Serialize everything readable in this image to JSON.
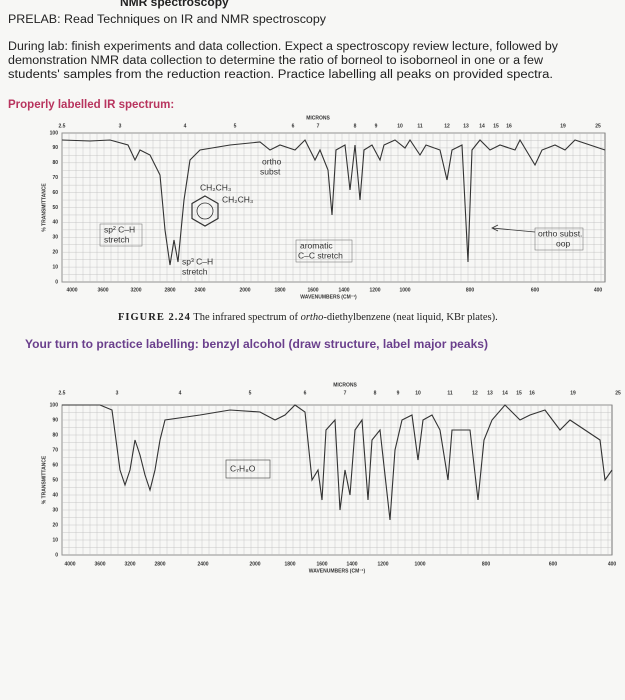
{
  "header": {
    "title": "NMR spectroscopy"
  },
  "prelab": "PRELAB: Read Techniques on IR and NMR spectroscopy",
  "paragraph": [
    "During lab: finish experiments and data collection. Expect a spectroscopy review lecture, followed by",
    "demonstration NMR data collection to determine the ratio of borneol to isoborneol in one or a few",
    "students' samples from the reduction reaction. Practice labelling all peaks on provided spectra."
  ],
  "section1": {
    "heading": "Properly labelled IR spectrum:",
    "spectrum": {
      "microns_label": "MICRONS",
      "x_label": "WAVENUMBERS (CM⁻¹)",
      "y_label": "% TRANSMITTANCE",
      "microns": [
        "2.5",
        "3",
        "4",
        "5",
        "6",
        "7",
        "8",
        "9",
        "10",
        "11",
        "12",
        "13",
        "14",
        "15",
        "16",
        "19",
        "25"
      ],
      "wavenumbers": [
        "4000",
        "3600",
        "3200",
        "2800",
        "2400",
        "2000",
        "1800",
        "1600",
        "1400",
        "1200",
        "1000",
        "800",
        "600",
        "400"
      ],
      "transmittance": [
        "100",
        "90",
        "80",
        "70",
        "60",
        "50",
        "40",
        "30",
        "20",
        "10",
        "0"
      ],
      "annotations": [
        "ortho",
        "subst",
        "CH₂CH₃",
        "CH₂CH₃",
        "sp² C–H",
        "stretch",
        "sp³ C–H",
        "stretch",
        "aromatic",
        "C–C stretch",
        "ortho subst.",
        "oop"
      ]
    },
    "caption": {
      "label": "FIGURE 2.24",
      "before": "The infrared spectrum of",
      "italic": "ortho",
      "after": "-diethylbenzene (neat liquid, KBr plates)."
    }
  },
  "section2": {
    "heading": "Your turn to practice labelling: benzyl alcohol (draw structure, label major peaks)",
    "spectrum": {
      "microns_label": "MICRONS",
      "x_label": "WAVENUMBERS (CM⁻¹)",
      "y_label": "% TRANSMITTANCE",
      "microns": [
        "2.5",
        "3",
        "4",
        "5",
        "6",
        "7",
        "8",
        "9",
        "10",
        "11",
        "12",
        "13",
        "14",
        "15",
        "16",
        "19",
        "25"
      ],
      "wavenumbers": [
        "4000",
        "3600",
        "3200",
        "2800",
        "2400",
        "2000",
        "1800",
        "1600",
        "1400",
        "1200",
        "1000",
        "800",
        "600",
        "400"
      ],
      "transmittance": [
        "100",
        "90",
        "80",
        "70",
        "60",
        "50",
        "40",
        "30",
        "20",
        "10",
        "0"
      ],
      "annotations": [
        "C₇H₈O"
      ]
    }
  }
}
